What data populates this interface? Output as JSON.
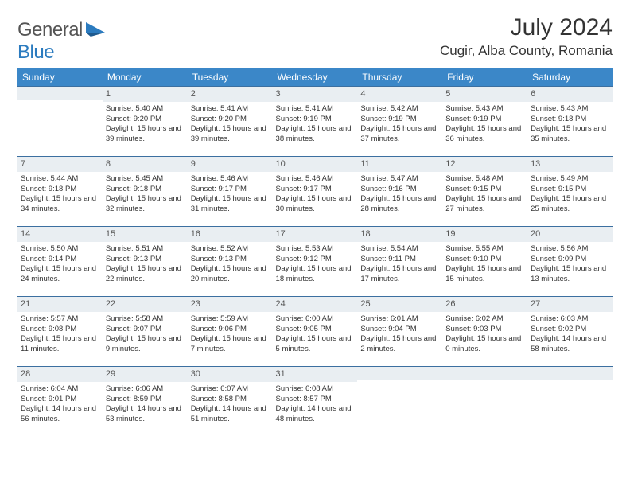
{
  "logo": {
    "general": "General",
    "blue": "Blue"
  },
  "title": {
    "monthYear": "July 2024",
    "location": "Cugir, Alba County, Romania"
  },
  "colors": {
    "headerBg": "#3b87c8",
    "headerText": "#ffffff",
    "dayBarBg": "#e9eef2",
    "dayBarBorder": "#3b6fa0",
    "logoBlue": "#2b7bbf",
    "bodyText": "#333333"
  },
  "calendar": {
    "dayNames": [
      "Sunday",
      "Monday",
      "Tuesday",
      "Wednesday",
      "Thursday",
      "Friday",
      "Saturday"
    ],
    "weeks": [
      [
        null,
        {
          "n": "1",
          "sr": "5:40 AM",
          "ss": "9:20 PM",
          "dl": "15 hours and 39 minutes."
        },
        {
          "n": "2",
          "sr": "5:41 AM",
          "ss": "9:20 PM",
          "dl": "15 hours and 39 minutes."
        },
        {
          "n": "3",
          "sr": "5:41 AM",
          "ss": "9:19 PM",
          "dl": "15 hours and 38 minutes."
        },
        {
          "n": "4",
          "sr": "5:42 AM",
          "ss": "9:19 PM",
          "dl": "15 hours and 37 minutes."
        },
        {
          "n": "5",
          "sr": "5:43 AM",
          "ss": "9:19 PM",
          "dl": "15 hours and 36 minutes."
        },
        {
          "n": "6",
          "sr": "5:43 AM",
          "ss": "9:18 PM",
          "dl": "15 hours and 35 minutes."
        }
      ],
      [
        {
          "n": "7",
          "sr": "5:44 AM",
          "ss": "9:18 PM",
          "dl": "15 hours and 34 minutes."
        },
        {
          "n": "8",
          "sr": "5:45 AM",
          "ss": "9:18 PM",
          "dl": "15 hours and 32 minutes."
        },
        {
          "n": "9",
          "sr": "5:46 AM",
          "ss": "9:17 PM",
          "dl": "15 hours and 31 minutes."
        },
        {
          "n": "10",
          "sr": "5:46 AM",
          "ss": "9:17 PM",
          "dl": "15 hours and 30 minutes."
        },
        {
          "n": "11",
          "sr": "5:47 AM",
          "ss": "9:16 PM",
          "dl": "15 hours and 28 minutes."
        },
        {
          "n": "12",
          "sr": "5:48 AM",
          "ss": "9:15 PM",
          "dl": "15 hours and 27 minutes."
        },
        {
          "n": "13",
          "sr": "5:49 AM",
          "ss": "9:15 PM",
          "dl": "15 hours and 25 minutes."
        }
      ],
      [
        {
          "n": "14",
          "sr": "5:50 AM",
          "ss": "9:14 PM",
          "dl": "15 hours and 24 minutes."
        },
        {
          "n": "15",
          "sr": "5:51 AM",
          "ss": "9:13 PM",
          "dl": "15 hours and 22 minutes."
        },
        {
          "n": "16",
          "sr": "5:52 AM",
          "ss": "9:13 PM",
          "dl": "15 hours and 20 minutes."
        },
        {
          "n": "17",
          "sr": "5:53 AM",
          "ss": "9:12 PM",
          "dl": "15 hours and 18 minutes."
        },
        {
          "n": "18",
          "sr": "5:54 AM",
          "ss": "9:11 PM",
          "dl": "15 hours and 17 minutes."
        },
        {
          "n": "19",
          "sr": "5:55 AM",
          "ss": "9:10 PM",
          "dl": "15 hours and 15 minutes."
        },
        {
          "n": "20",
          "sr": "5:56 AM",
          "ss": "9:09 PM",
          "dl": "15 hours and 13 minutes."
        }
      ],
      [
        {
          "n": "21",
          "sr": "5:57 AM",
          "ss": "9:08 PM",
          "dl": "15 hours and 11 minutes."
        },
        {
          "n": "22",
          "sr": "5:58 AM",
          "ss": "9:07 PM",
          "dl": "15 hours and 9 minutes."
        },
        {
          "n": "23",
          "sr": "5:59 AM",
          "ss": "9:06 PM",
          "dl": "15 hours and 7 minutes."
        },
        {
          "n": "24",
          "sr": "6:00 AM",
          "ss": "9:05 PM",
          "dl": "15 hours and 5 minutes."
        },
        {
          "n": "25",
          "sr": "6:01 AM",
          "ss": "9:04 PM",
          "dl": "15 hours and 2 minutes."
        },
        {
          "n": "26",
          "sr": "6:02 AM",
          "ss": "9:03 PM",
          "dl": "15 hours and 0 minutes."
        },
        {
          "n": "27",
          "sr": "6:03 AM",
          "ss": "9:02 PM",
          "dl": "14 hours and 58 minutes."
        }
      ],
      [
        {
          "n": "28",
          "sr": "6:04 AM",
          "ss": "9:01 PM",
          "dl": "14 hours and 56 minutes."
        },
        {
          "n": "29",
          "sr": "6:06 AM",
          "ss": "8:59 PM",
          "dl": "14 hours and 53 minutes."
        },
        {
          "n": "30",
          "sr": "6:07 AM",
          "ss": "8:58 PM",
          "dl": "14 hours and 51 minutes."
        },
        {
          "n": "31",
          "sr": "6:08 AM",
          "ss": "8:57 PM",
          "dl": "14 hours and 48 minutes."
        },
        null,
        null,
        null
      ]
    ],
    "labels": {
      "sunrise": "Sunrise:",
      "sunset": "Sunset:",
      "daylight": "Daylight:"
    }
  }
}
